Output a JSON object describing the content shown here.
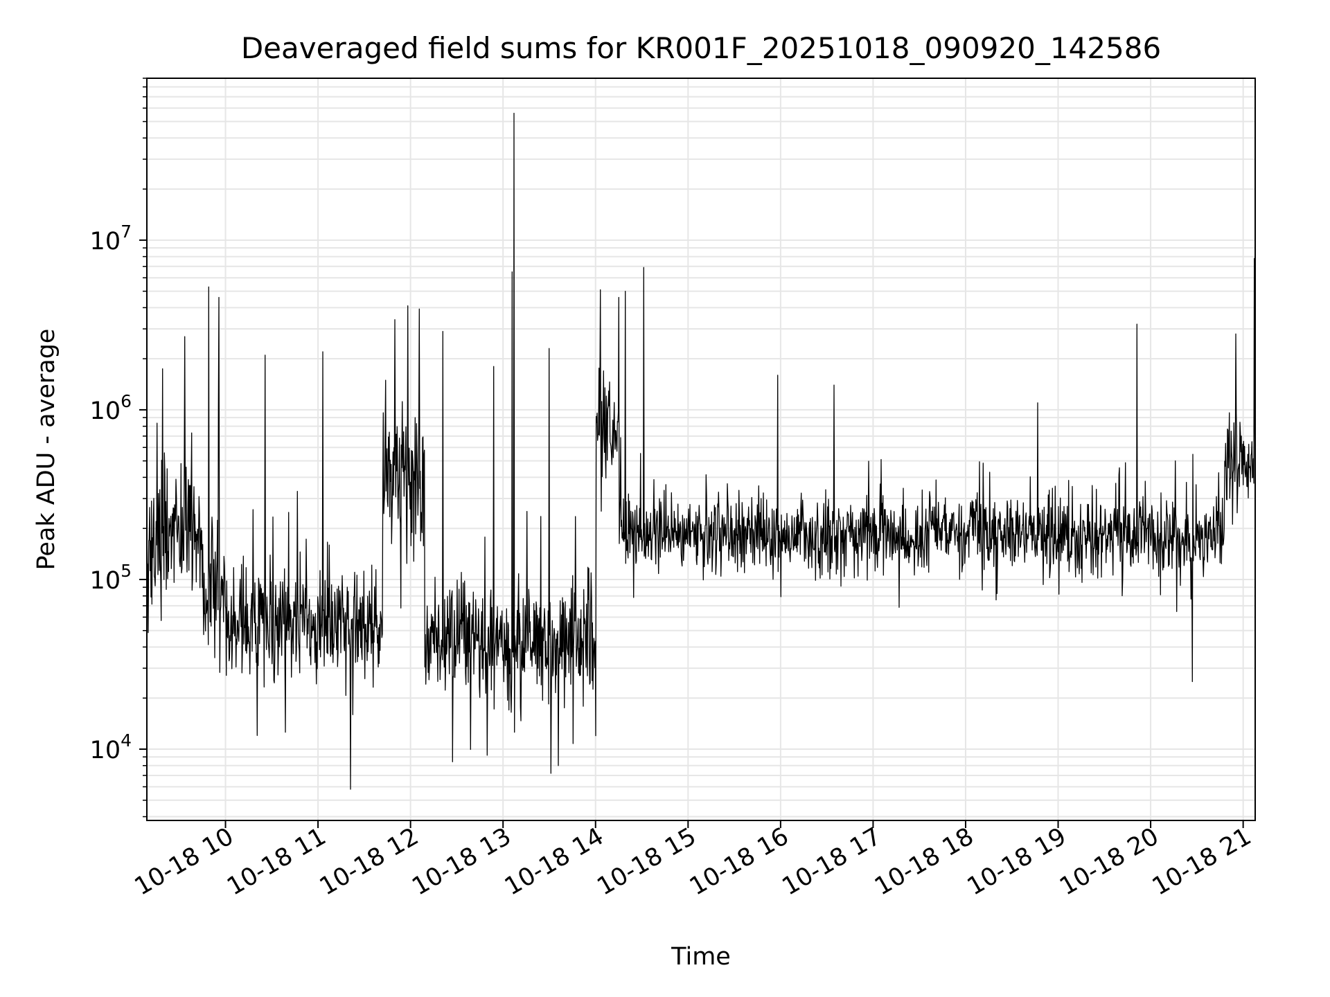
{
  "chart_data": {
    "type": "line",
    "title": "Deaveraged field sums for KR001F_20251018_090920_142586",
    "xlabel": "Time",
    "ylabel": "Peak ADU - average",
    "yscale": "log",
    "ylim": [
      3800,
      90000000
    ],
    "xlim_hours": [
      9.15,
      21.13
    ],
    "grid": true,
    "x_tick_labels": [
      "10-18 10",
      "10-18 11",
      "10-18 12",
      "10-18 13",
      "10-18 14",
      "10-18 15",
      "10-18 16",
      "10-18 17",
      "10-18 18",
      "10-18 19",
      "10-18 20",
      "10-18 21"
    ],
    "x_tick_hours": [
      10,
      11,
      12,
      13,
      14,
      15,
      16,
      17,
      18,
      19,
      20,
      21
    ],
    "y_ticks": [
      {
        "value": 10000,
        "base": "10",
        "exp": "4"
      },
      {
        "value": 100000,
        "base": "10",
        "exp": "5"
      },
      {
        "value": 1000000,
        "base": "10",
        "exp": "6"
      },
      {
        "value": 10000000,
        "base": "10",
        "exp": "7"
      }
    ],
    "series": [
      {
        "name": "field sums",
        "color": "#000000",
        "segments": [
          {
            "t0": 9.15,
            "t1": 9.75,
            "median": 180000,
            "spread": 2.2
          },
          {
            "t0": 9.75,
            "t1": 10.0,
            "median": 90000,
            "spread": 2.3
          },
          {
            "t0": 10.0,
            "t1": 11.7,
            "median": 55000,
            "spread": 2.0
          },
          {
            "t0": 11.7,
            "t1": 12.15,
            "median": 420000,
            "spread": 2.2
          },
          {
            "t0": 12.15,
            "t1": 14.0,
            "median": 42000,
            "spread": 2.0
          },
          {
            "t0": 14.0,
            "t1": 14.25,
            "median": 700000,
            "spread": 2.4
          },
          {
            "t0": 14.25,
            "t1": 20.8,
            "median": 185000,
            "spread": 1.6
          },
          {
            "t0": 20.8,
            "t1": 21.13,
            "median": 480000,
            "spread": 1.7
          }
        ],
        "spikes": [
          {
            "t": 9.56,
            "value": 2700000
          },
          {
            "t": 9.82,
            "value": 5300000
          },
          {
            "t": 9.93,
            "value": 4600000
          },
          {
            "t": 10.43,
            "value": 2100000
          },
          {
            "t": 11.05,
            "value": 2200000
          },
          {
            "t": 11.83,
            "value": 3400000
          },
          {
            "t": 11.97,
            "value": 4100000
          },
          {
            "t": 12.35,
            "value": 2900000
          },
          {
            "t": 12.9,
            "value": 1800000
          },
          {
            "t": 13.1,
            "value": 6500000
          },
          {
            "t": 13.12,
            "value": 56000000
          },
          {
            "t": 13.5,
            "value": 2300000
          },
          {
            "t": 14.05,
            "value": 5100000
          },
          {
            "t": 14.25,
            "value": 4600000
          },
          {
            "t": 14.32,
            "value": 5000000
          },
          {
            "t": 14.52,
            "value": 6900000
          },
          {
            "t": 15.97,
            "value": 1600000
          },
          {
            "t": 16.58,
            "value": 1400000
          },
          {
            "t": 18.78,
            "value": 1100000
          },
          {
            "t": 19.85,
            "value": 3200000
          },
          {
            "t": 20.92,
            "value": 2800000
          },
          {
            "t": 21.12,
            "value": 7800000
          },
          {
            "t": 11.35,
            "value": 5800
          },
          {
            "t": 12.83,
            "value": 9200
          },
          {
            "t": 13.52,
            "value": 7200
          },
          {
            "t": 13.6,
            "value": 8000
          },
          {
            "t": 14.0,
            "value": 12000
          },
          {
            "t": 20.45,
            "value": 25000
          }
        ]
      }
    ]
  }
}
